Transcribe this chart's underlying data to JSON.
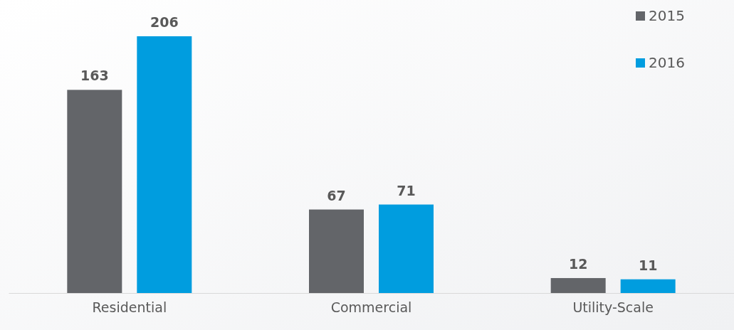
{
  "chart_data": {
    "type": "bar",
    "categories": [
      "Residential",
      "Commercial",
      "Utility-Scale"
    ],
    "series": [
      {
        "name": "2015",
        "color": "#636569",
        "values": [
          163,
          67,
          12
        ]
      },
      {
        "name": "2016",
        "color": "#009ddf",
        "values": [
          206,
          71,
          11
        ]
      }
    ],
    "data_labels": true,
    "legend": "top right",
    "grid": false
  }
}
